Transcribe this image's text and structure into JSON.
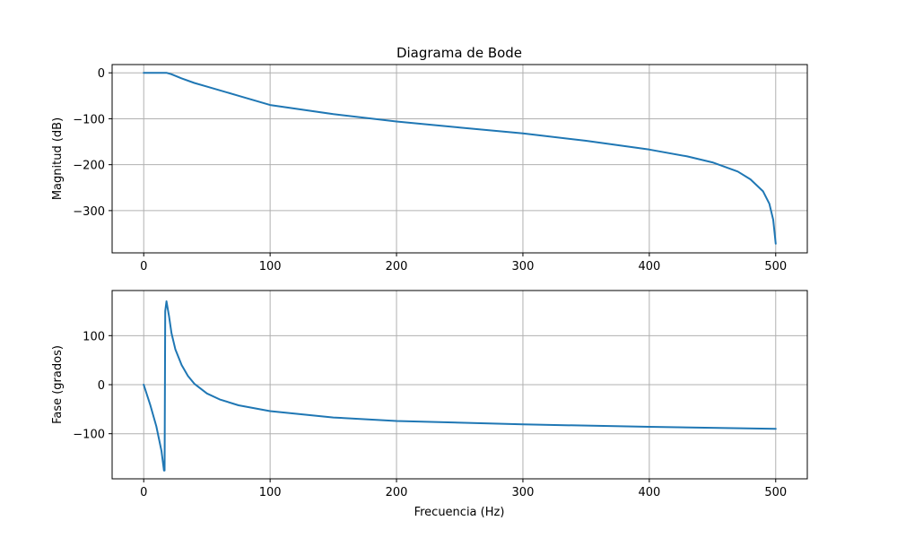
{
  "chart_data": [
    {
      "type": "line",
      "title": "Diagrama de Bode",
      "xlabel": "",
      "ylabel": "Magnitud (dB)",
      "xlim": [
        -25,
        525
      ],
      "ylim": [
        -392,
        18
      ],
      "xticks": [
        0,
        100,
        200,
        300,
        400,
        500
      ],
      "xtick_labels": [
        "0",
        "100",
        "200",
        "300",
        "400",
        "500"
      ],
      "yticks": [
        0,
        -100,
        -200,
        -300
      ],
      "ytick_labels": [
        "0",
        "−100",
        "−200",
        "−300"
      ],
      "grid": true,
      "color": "#1f77b4",
      "series": [
        {
          "x": [
            0,
            10,
            18,
            22,
            30,
            40,
            50,
            75,
            100,
            150,
            200,
            250,
            300,
            350,
            400,
            430,
            450,
            470,
            480,
            490,
            495,
            498,
            500
          ],
          "y": [
            0,
            0,
            0,
            -3,
            -12,
            -22,
            -30,
            -50,
            -70,
            -90,
            -106,
            -119,
            -132,
            -148,
            -167,
            -182,
            -195,
            -215,
            -232,
            -258,
            -285,
            -320,
            -372
          ]
        }
      ]
    },
    {
      "type": "line",
      "title": "",
      "xlabel": "Frecuencia (Hz)",
      "ylabel": "Fase (grados)",
      "xlim": [
        -25,
        525
      ],
      "ylim": [
        -192,
        192
      ],
      "xticks": [
        0,
        100,
        200,
        300,
        400,
        500
      ],
      "xtick_labels": [
        "0",
        "100",
        "200",
        "300",
        "400",
        "500"
      ],
      "yticks": [
        100,
        0,
        -100
      ],
      "ytick_labels": [
        "100",
        "0",
        "−100"
      ],
      "grid": true,
      "color": "#1f77b4",
      "series": [
        {
          "x": [
            0,
            5,
            10,
            14,
            16,
            16.5,
            17,
            18,
            20,
            22,
            25,
            30,
            35,
            40,
            50,
            60,
            75,
            100,
            150,
            200,
            300,
            400,
            500
          ],
          "y": [
            0,
            -40,
            -85,
            -135,
            -175,
            -175,
            150,
            170,
            140,
            105,
            72,
            40,
            18,
            2,
            -18,
            -30,
            -42,
            -54,
            -67,
            -74,
            -81,
            -86,
            -90
          ]
        }
      ]
    }
  ]
}
